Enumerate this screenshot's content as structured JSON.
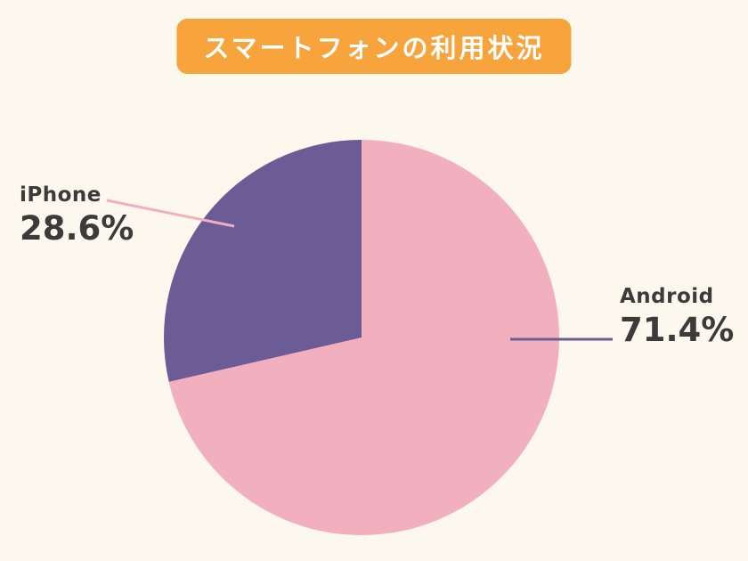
{
  "title": "スマートフォンの利用状況",
  "colors": {
    "background": "#FCF8EE",
    "badge": "#F6A43B",
    "badge_text": "#FFFFFF",
    "label_text": "#3B3B3B",
    "iphone_leader": "#F2B0BE",
    "android_leader": "#6B5C95"
  },
  "chart_data": {
    "type": "pie",
    "title": "スマートフォンの利用状況",
    "slices": [
      {
        "label": "Android",
        "value": 71.4,
        "display_value": "71.4%",
        "color": "#F2B0BE"
      },
      {
        "label": "iPhone",
        "value": 28.6,
        "display_value": "28.6%",
        "color": "#6B5C95"
      }
    ],
    "legend": "none",
    "start_angle": "12 o'clock",
    "iphone_sweep_direction": "counter-clockwise",
    "label_style": "external labels with leader lines"
  }
}
